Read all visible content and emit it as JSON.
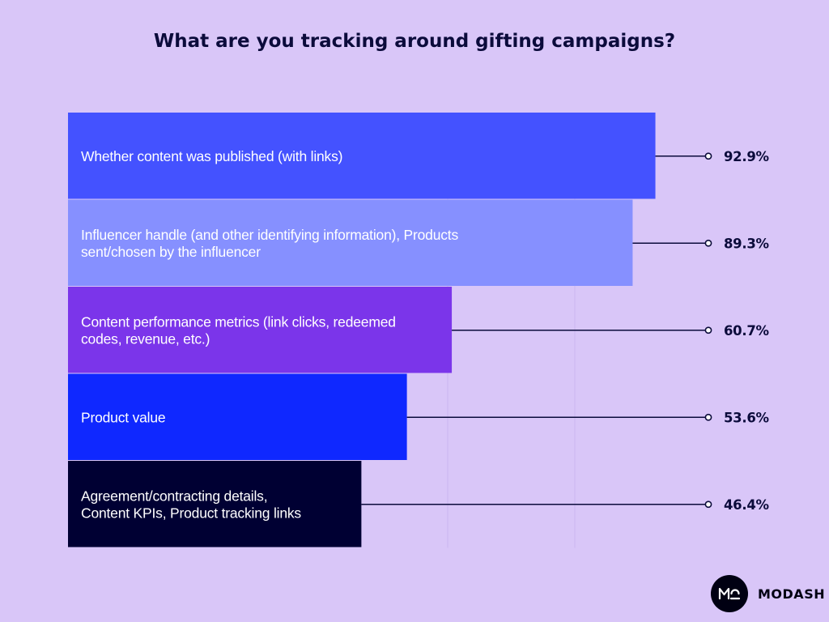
{
  "chart_data": {
    "type": "bar",
    "orientation": "horizontal",
    "title": "What are you tracking around gifting campaigns?",
    "categories": [
      [
        "Whether content was published (with links)"
      ],
      [
        "Influencer handle (and other identifying information), Products",
        "sent/chosen by the influencer"
      ],
      [
        "Content performance metrics (link clicks, redeemed",
        "codes, revenue, etc.)"
      ],
      [
        "Product value"
      ],
      [
        "Agreement/contracting details,",
        "Content KPIs, Product tracking links"
      ]
    ],
    "values": [
      92.9,
      89.3,
      60.7,
      53.6,
      46.4
    ],
    "value_labels": [
      "92.9%",
      "89.3%",
      "60.7%",
      "53.6%",
      "46.4%"
    ],
    "colors": [
      "#4452ff",
      "#8690ff",
      "#7b35ea",
      "#0f28ff",
      "#000033"
    ],
    "text_colors": [
      "#ffffff",
      "#ffffff",
      "#ffffff",
      "#ffffff",
      "#ffffff"
    ],
    "xlim": [
      0,
      100
    ],
    "legend": "none"
  },
  "brand": {
    "logo_text": "MO",
    "name": "MODASH"
  }
}
